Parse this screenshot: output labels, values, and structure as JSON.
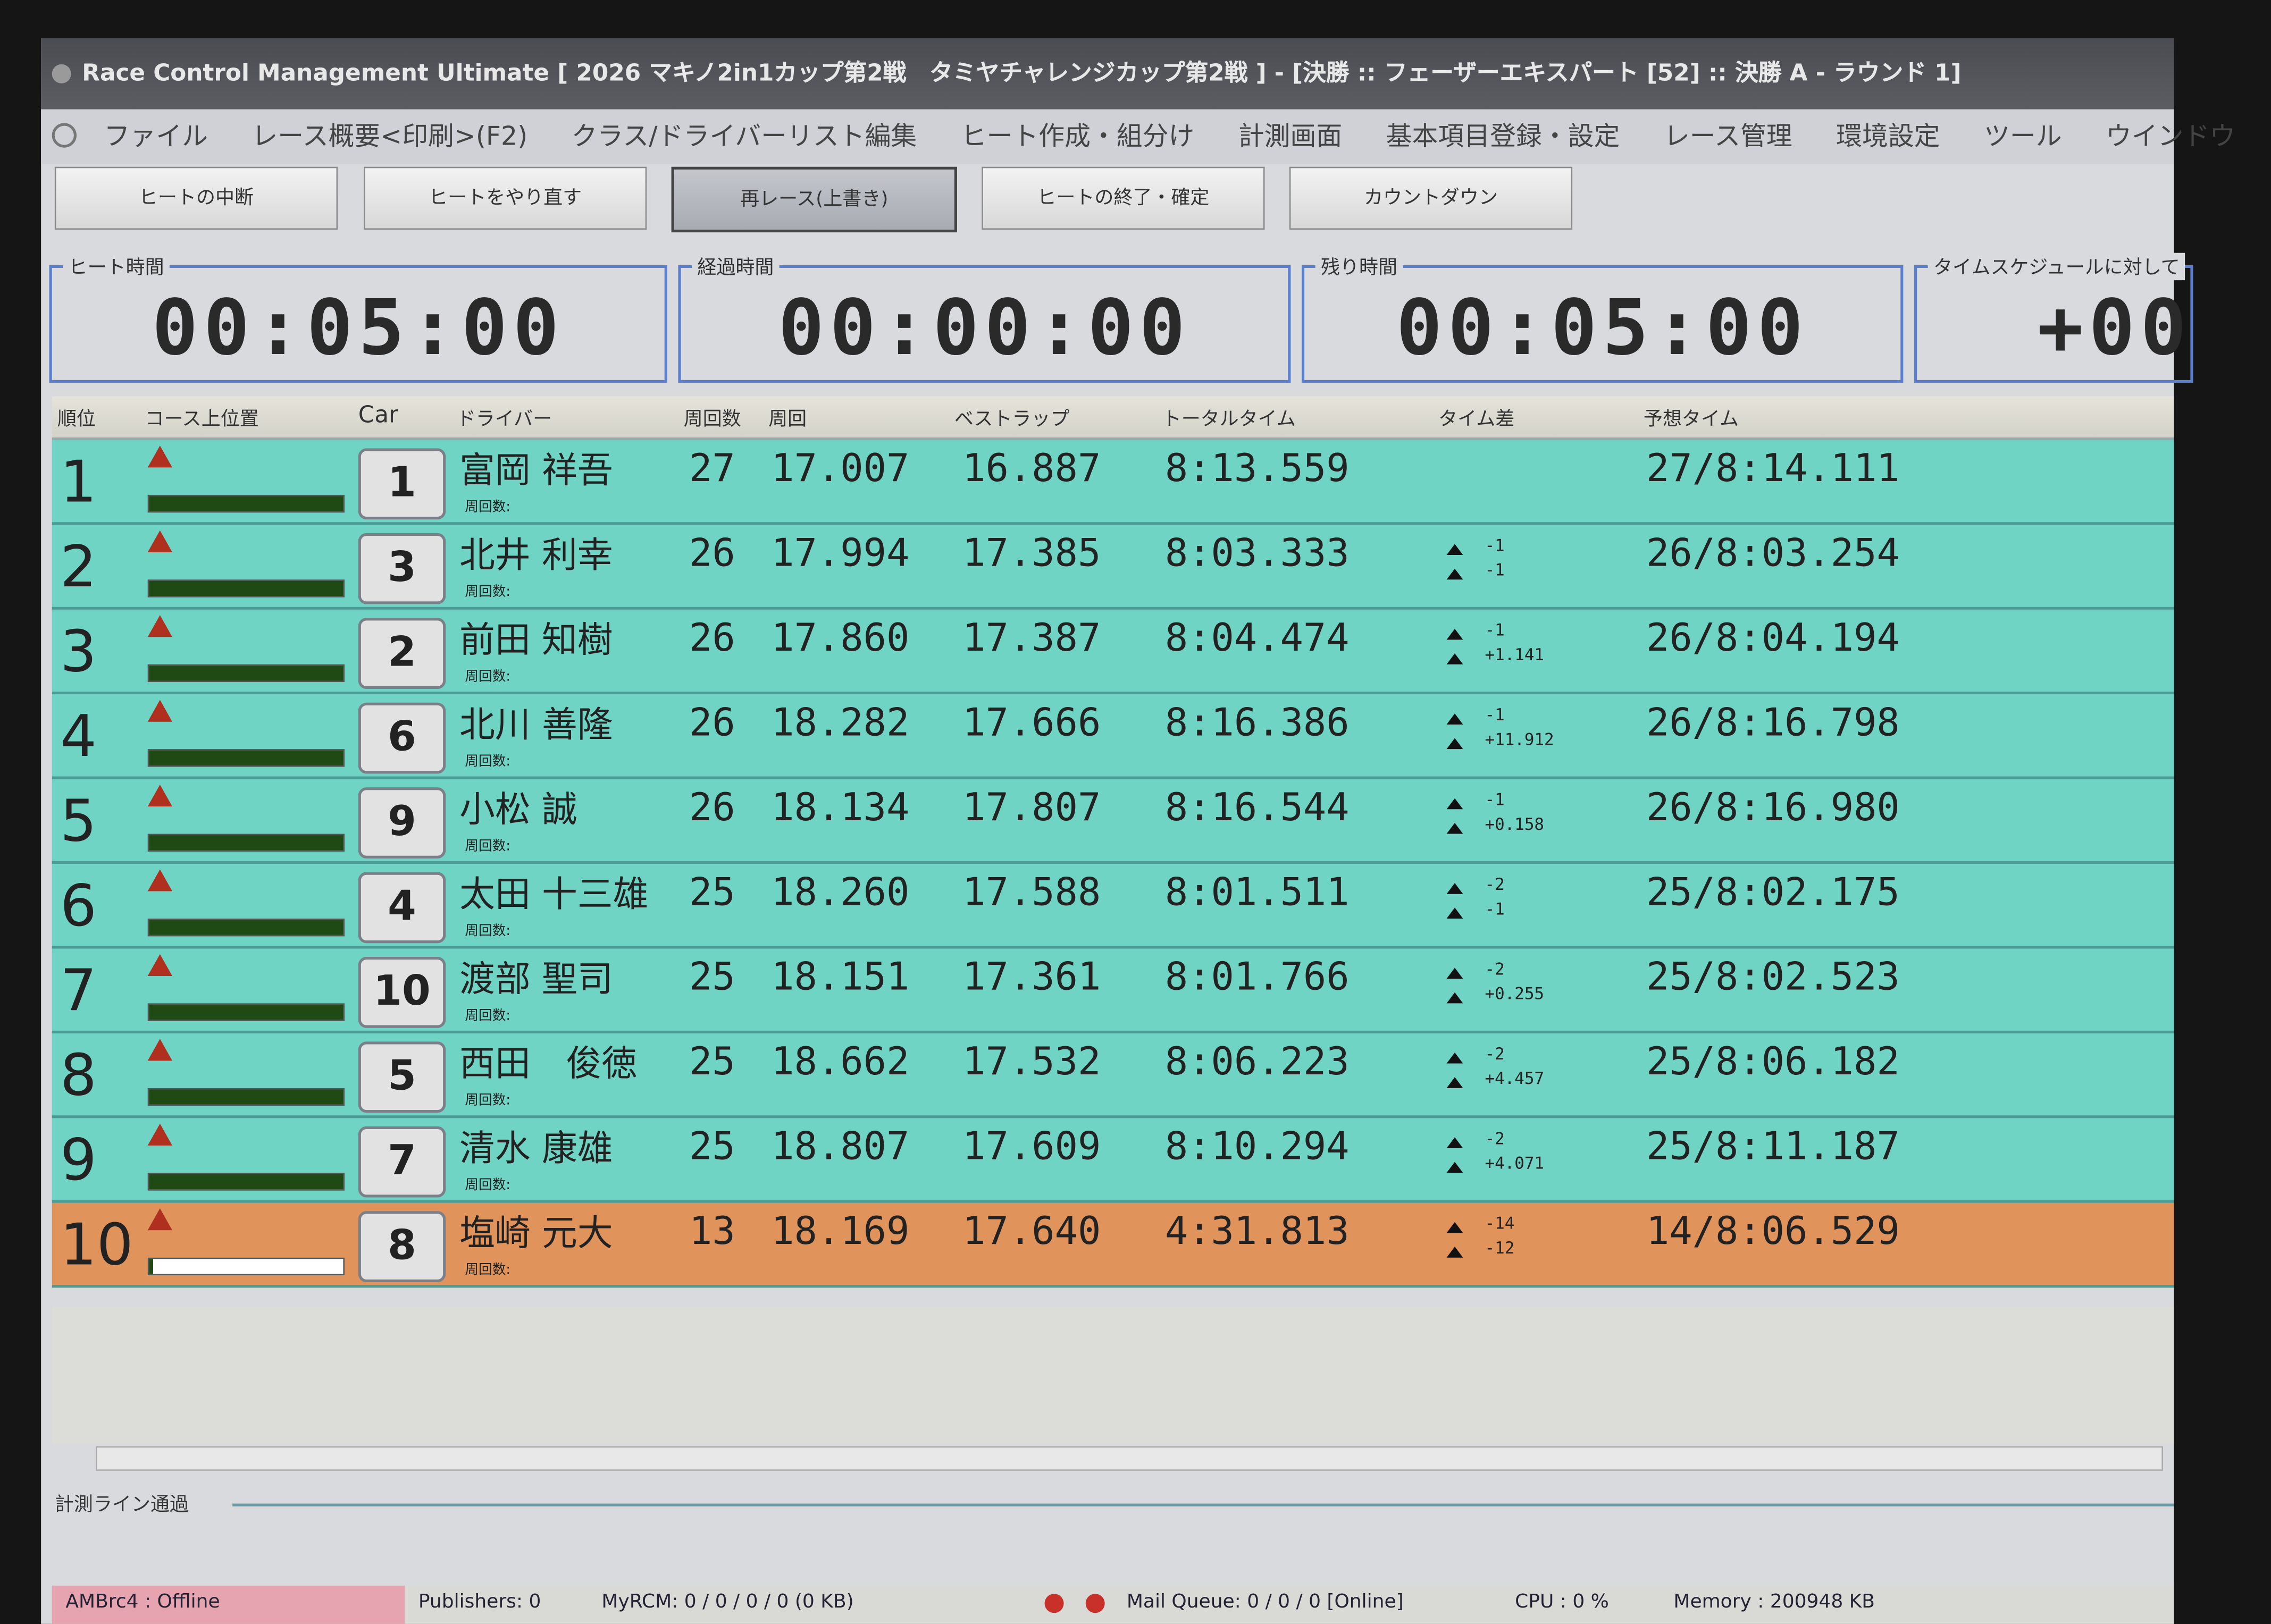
{
  "window": {
    "title": "Race Control Management Ultimate [ 2026 マキノ2in1カップ第2戦　タミヤチャレンジカップ第2戦 ] - [決勝 :: フェーザーエキスパート [52] :: 決勝 A - ラウンド 1]"
  },
  "menu": [
    "ファイル",
    "レース概要<印刷>(F2)",
    "クラス/ドライバーリスト編集",
    "ヒート作成・組分け",
    "計測画面",
    "基本項目登録・設定",
    "レース管理",
    "環境設定",
    "ツール",
    "ウインドウ"
  ],
  "toolbar": {
    "buttons": [
      "ヒートの中断",
      "ヒートをやり直す",
      "再レース(上書き)",
      "ヒートの終了・確定",
      "カウントダウン"
    ]
  },
  "timers": {
    "heat_label": "ヒート時間",
    "heat": "00:05:00",
    "elapsed_label": "経過時間",
    "elapsed": "00:00:00",
    "remaining_label": "残り時間",
    "remaining": "00:05:00",
    "schedule_label": "タイムスケジュールに対して",
    "schedule": "+00"
  },
  "table": {
    "headers": [
      "順位",
      "コース上位置",
      "Car",
      "ドライバー",
      "周回数",
      "周回",
      "ベストラップ",
      "トータルタイム",
      "タイム差",
      "予想タイム"
    ],
    "sub_label": "周回数:",
    "rows": [
      {
        "rank": "1",
        "car": "1",
        "driver": "富岡 祥吾",
        "laps": "27",
        "lap": "17.007",
        "best": "16.887",
        "total": "8:13.559",
        "d1": "",
        "d2": "",
        "pred": "27/8:14.111",
        "progress": 1
      },
      {
        "rank": "2",
        "car": "3",
        "driver": "北井 利幸",
        "laps": "26",
        "lap": "17.994",
        "best": "17.385",
        "total": "8:03.333",
        "d1": "-1",
        "d2": "-1",
        "pred": "26/8:03.254",
        "progress": 1
      },
      {
        "rank": "3",
        "car": "2",
        "driver": "前田 知樹",
        "laps": "26",
        "lap": "17.860",
        "best": "17.387",
        "total": "8:04.474",
        "d1": "-1",
        "d2": "+1.141",
        "pred": "26/8:04.194",
        "progress": 1
      },
      {
        "rank": "4",
        "car": "6",
        "driver": "北川 善隆",
        "laps": "26",
        "lap": "18.282",
        "best": "17.666",
        "total": "8:16.386",
        "d1": "-1",
        "d2": "+11.912",
        "pred": "26/8:16.798",
        "progress": 1
      },
      {
        "rank": "5",
        "car": "9",
        "driver": "小松 誠",
        "laps": "26",
        "lap": "18.134",
        "best": "17.807",
        "total": "8:16.544",
        "d1": "-1",
        "d2": "+0.158",
        "pred": "26/8:16.980",
        "progress": 1
      },
      {
        "rank": "6",
        "car": "4",
        "driver": "太田 十三雄",
        "laps": "25",
        "lap": "18.260",
        "best": "17.588",
        "total": "8:01.511",
        "d1": "-2",
        "d2": "-1",
        "pred": "25/8:02.175",
        "progress": 1
      },
      {
        "rank": "7",
        "car": "10",
        "driver": "渡部 聖司",
        "laps": "25",
        "lap": "18.151",
        "best": "17.361",
        "total": "8:01.766",
        "d1": "-2",
        "d2": "+0.255",
        "pred": "25/8:02.523",
        "progress": 1
      },
      {
        "rank": "8",
        "car": "5",
        "driver": "西田　俊徳",
        "laps": "25",
        "lap": "18.662",
        "best": "17.532",
        "total": "8:06.223",
        "d1": "-2",
        "d2": "+4.457",
        "pred": "25/8:06.182",
        "progress": 1
      },
      {
        "rank": "9",
        "car": "7",
        "driver": "清水 康雄",
        "laps": "25",
        "lap": "18.807",
        "best": "17.609",
        "total": "8:10.294",
        "d1": "-2",
        "d2": "+4.071",
        "pred": "25/8:11.187",
        "progress": 1
      },
      {
        "rank": "10",
        "car": "8",
        "driver": "塩崎 元大",
        "laps": "13",
        "lap": "18.169",
        "best": "17.640",
        "total": "4:31.813",
        "d1": "-14",
        "d2": "-12",
        "pred": "14/8:06.529",
        "progress": 0.02
      }
    ]
  },
  "pass_label": "計測ライン通過",
  "status": {
    "ambrc": "AMBrc4 : Offline",
    "publishers": "Publishers: 0",
    "myrcm": "MyRCM: 0 / 0 / 0 / 0 (0 KB)",
    "mail": "Mail Queue: 0 / 0 / 0 [Online]",
    "cpu": "CPU : 0 %",
    "memory": "Memory : 200948 KB"
  },
  "colors": {
    "row": "#6fd4c4",
    "selected_row": "#e1935c",
    "progress": "#1f4a14",
    "panel_border": "#5a7fd0"
  }
}
